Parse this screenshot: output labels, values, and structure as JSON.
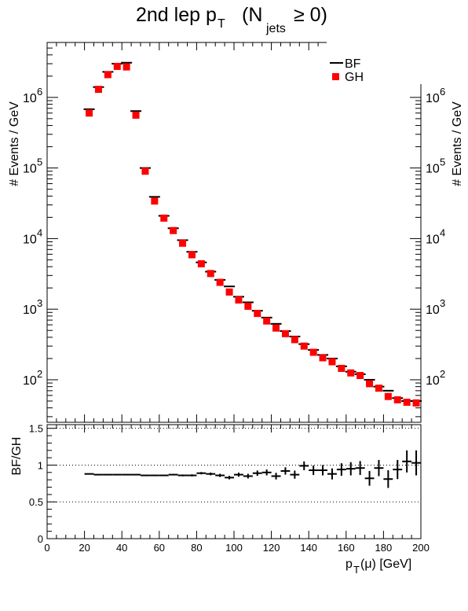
{
  "chart_data": [
    {
      "type": "scatter",
      "title_text": "2nd lep p",
      "title_sub": "T",
      "title_paren_open": "(N",
      "title_paren_sub": "jets",
      "title_tail": "≥ 0)",
      "ylabel": "# Events / GeV",
      "yscale": "log",
      "ylim": [
        25,
        6000000
      ],
      "xlim": [
        0,
        200
      ],
      "y_tick_labels": [
        "10",
        "10",
        "10",
        "10",
        "10"
      ],
      "y_tick_exponents": [
        "2",
        "3",
        "4",
        "5",
        "6"
      ],
      "y_tick_values": [
        100,
        1000,
        10000,
        100000,
        1000000
      ],
      "legend_placement": "top-right",
      "series": [
        {
          "name": "BF",
          "marker": "horizontal-line",
          "color": "#000000",
          "x": [
            22.5,
            27.5,
            32.5,
            37.5,
            42.5,
            47.5,
            52.5,
            57.5,
            62.5,
            67.5,
            72.5,
            77.5,
            82.5,
            87.5,
            92.5,
            97.5,
            102.5,
            107.5,
            112.5,
            117.5,
            122.5,
            127.5,
            132.5,
            137.5,
            142.5,
            147.5,
            152.5,
            157.5,
            162.5,
            167.5,
            172.5,
            177.5,
            182.5,
            187.5,
            192.5,
            197.5
          ],
          "values": [
            680000,
            1400000,
            2300000,
            3000000,
            3100000,
            640000,
            100000,
            39000,
            21000,
            14000,
            9500,
            6500,
            4600,
            3400,
            2600,
            2100,
            1500,
            1250,
            950,
            760,
            620,
            490,
            410,
            320,
            265,
            225,
            200,
            155,
            130,
            120,
            100,
            80,
            70,
            55,
            50,
            50
          ]
        },
        {
          "name": "GH",
          "marker": "square",
          "color": "#ff0000",
          "x": [
            22.5,
            27.5,
            32.5,
            37.5,
            42.5,
            47.5,
            52.5,
            57.5,
            62.5,
            67.5,
            72.5,
            77.5,
            82.5,
            87.5,
            92.5,
            97.5,
            102.5,
            107.5,
            112.5,
            117.5,
            122.5,
            127.5,
            132.5,
            137.5,
            142.5,
            147.5,
            152.5,
            157.5,
            162.5,
            167.5,
            172.5,
            177.5,
            182.5,
            187.5,
            192.5,
            197.5
          ],
          "values": [
            600000,
            1300000,
            2100000,
            2750000,
            2700000,
            560000,
            90000,
            34000,
            19500,
            13000,
            8600,
            5900,
            4400,
            3200,
            2400,
            1750,
            1350,
            1100,
            870,
            680,
            540,
            450,
            370,
            300,
            245,
            205,
            180,
            145,
            125,
            115,
            88,
            76,
            58,
            52,
            48,
            47
          ]
        }
      ]
    },
    {
      "type": "scatter",
      "ylabel": "BF/GH",
      "xlabel_main": "p",
      "xlabel_sub": "T",
      "xlabel_tail": "(μ) [GeV]",
      "xlim": [
        0,
        200
      ],
      "ylim": [
        0,
        1.55
      ],
      "x_tick_labels": [
        "0",
        "20",
        "40",
        "60",
        "80",
        "100",
        "120",
        "140",
        "160",
        "180",
        "200"
      ],
      "x_tick_values": [
        0,
        20,
        40,
        60,
        80,
        100,
        120,
        140,
        160,
        180,
        200
      ],
      "y_tick_labels": [
        "0",
        "0.5",
        "1",
        "1.5"
      ],
      "y_tick_values": [
        0,
        0.5,
        1,
        1.5
      ],
      "reference_lines": [
        0.5,
        1.0,
        1.5
      ],
      "series": [
        {
          "name": "",
          "marker": "cross-errorbar",
          "color": "#000000",
          "x": [
            22.5,
            27.5,
            32.5,
            37.5,
            42.5,
            47.5,
            52.5,
            57.5,
            62.5,
            67.5,
            72.5,
            77.5,
            82.5,
            87.5,
            92.5,
            97.5,
            102.5,
            107.5,
            112.5,
            117.5,
            122.5,
            127.5,
            132.5,
            137.5,
            142.5,
            147.5,
            152.5,
            157.5,
            162.5,
            167.5,
            172.5,
            177.5,
            182.5,
            187.5,
            192.5,
            197.5
          ],
          "values": [
            0.88,
            0.87,
            0.87,
            0.87,
            0.87,
            0.87,
            0.86,
            0.86,
            0.86,
            0.87,
            0.86,
            0.86,
            0.89,
            0.88,
            0.86,
            0.83,
            0.87,
            0.85,
            0.89,
            0.9,
            0.85,
            0.92,
            0.87,
            0.99,
            0.93,
            0.93,
            0.88,
            0.94,
            0.95,
            0.96,
            0.82,
            0.96,
            0.81,
            0.94,
            1.05,
            1.03
          ],
          "errors": [
            0.003,
            0.003,
            0.003,
            0.003,
            0.003,
            0.004,
            0.005,
            0.006,
            0.008,
            0.01,
            0.012,
            0.014,
            0.016,
            0.019,
            0.022,
            0.024,
            0.028,
            0.032,
            0.036,
            0.04,
            0.045,
            0.05,
            0.055,
            0.06,
            0.065,
            0.07,
            0.075,
            0.085,
            0.09,
            0.095,
            0.1,
            0.11,
            0.12,
            0.13,
            0.15,
            0.17
          ]
        }
      ]
    }
  ]
}
